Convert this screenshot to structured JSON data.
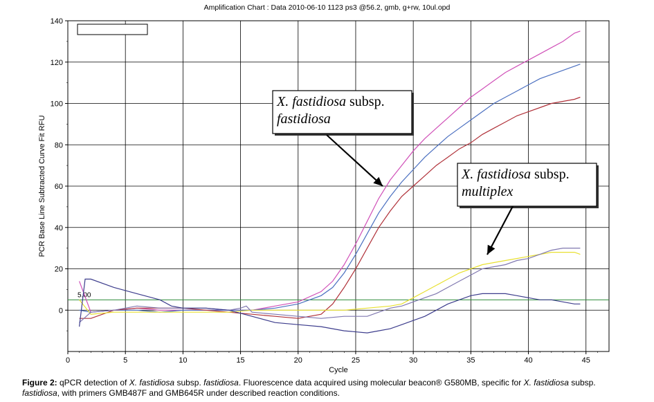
{
  "chart_data": {
    "type": "line",
    "title": "Amplification Chart : Data 2010-06-10 1123 ps3 @56.2, gmb, g+rw, 10ul.opd",
    "xlabel": "Cycle",
    "ylabel": "PCR Base Line Subtracted Curve Fit RFU",
    "xlim": [
      0,
      47
    ],
    "ylim": [
      -20,
      140
    ],
    "x_ticks": [
      "0",
      "5",
      "10",
      "15",
      "20",
      "25",
      "30",
      "35",
      "40",
      "45"
    ],
    "y_ticks": [
      "0",
      "20",
      "40",
      "60",
      "80",
      "100",
      "120",
      "140"
    ],
    "threshold": {
      "label": "5.00",
      "value": 5,
      "color": "#2e8b3a"
    },
    "grid": true,
    "series": [
      {
        "color": "#d050b8",
        "points": [
          [
            1,
            14
          ],
          [
            2,
            -1
          ],
          [
            4,
            0
          ],
          [
            6,
            1
          ],
          [
            8,
            0
          ],
          [
            10,
            0
          ],
          [
            12,
            0
          ],
          [
            14,
            0
          ],
          [
            16,
            0
          ],
          [
            18,
            2
          ],
          [
            20,
            4
          ],
          [
            22,
            9
          ],
          [
            23,
            14
          ],
          [
            24,
            22
          ],
          [
            25,
            32
          ],
          [
            26,
            43
          ],
          [
            27,
            54
          ],
          [
            28,
            63
          ],
          [
            29,
            70
          ],
          [
            30,
            77
          ],
          [
            31,
            83
          ],
          [
            32,
            88
          ],
          [
            33,
            93
          ],
          [
            34,
            98
          ],
          [
            35,
            103
          ],
          [
            36,
            107
          ],
          [
            37,
            111
          ],
          [
            38,
            115
          ],
          [
            39,
            118
          ],
          [
            40,
            121
          ],
          [
            41,
            124
          ],
          [
            42,
            127
          ],
          [
            43,
            130
          ],
          [
            44,
            134
          ],
          [
            44.5,
            135
          ]
        ]
      },
      {
        "color": "#4a6fc0",
        "points": [
          [
            1,
            0
          ],
          [
            2,
            -1
          ],
          [
            4,
            0
          ],
          [
            6,
            0
          ],
          [
            8,
            -1
          ],
          [
            10,
            0
          ],
          [
            12,
            0
          ],
          [
            14,
            0
          ],
          [
            16,
            0
          ],
          [
            18,
            1
          ],
          [
            20,
            3
          ],
          [
            22,
            7
          ],
          [
            23,
            11
          ],
          [
            24,
            18
          ],
          [
            25,
            27
          ],
          [
            26,
            37
          ],
          [
            27,
            47
          ],
          [
            28,
            55
          ],
          [
            29,
            62
          ],
          [
            30,
            68
          ],
          [
            31,
            74
          ],
          [
            32,
            79
          ],
          [
            33,
            84
          ],
          [
            34,
            88
          ],
          [
            35,
            92
          ],
          [
            36,
            96
          ],
          [
            37,
            100
          ],
          [
            38,
            103
          ],
          [
            39,
            106
          ],
          [
            40,
            109
          ],
          [
            41,
            112
          ],
          [
            42,
            114
          ],
          [
            43,
            116
          ],
          [
            44,
            118
          ],
          [
            44.5,
            119
          ]
        ]
      },
      {
        "color": "#b03038",
        "points": [
          [
            1,
            -4
          ],
          [
            2,
            -4
          ],
          [
            4,
            0
          ],
          [
            6,
            1
          ],
          [
            8,
            1
          ],
          [
            10,
            1
          ],
          [
            12,
            0
          ],
          [
            14,
            -1
          ],
          [
            16,
            -2
          ],
          [
            18,
            -3
          ],
          [
            20,
            -4
          ],
          [
            22,
            -2
          ],
          [
            23,
            3
          ],
          [
            24,
            11
          ],
          [
            25,
            20
          ],
          [
            26,
            30
          ],
          [
            27,
            40
          ],
          [
            28,
            48
          ],
          [
            29,
            55
          ],
          [
            30,
            60
          ],
          [
            31,
            65
          ],
          [
            32,
            70
          ],
          [
            33,
            74
          ],
          [
            34,
            78
          ],
          [
            35,
            81
          ],
          [
            36,
            85
          ],
          [
            37,
            88
          ],
          [
            38,
            91
          ],
          [
            39,
            94
          ],
          [
            40,
            96
          ],
          [
            41,
            98
          ],
          [
            42,
            100
          ],
          [
            43,
            101
          ],
          [
            44,
            102
          ],
          [
            44.5,
            103
          ]
        ]
      },
      {
        "color": "#e8e030",
        "points": [
          [
            1,
            5
          ],
          [
            2,
            -2
          ],
          [
            4,
            -1
          ],
          [
            6,
            -1
          ],
          [
            8,
            -1
          ],
          [
            10,
            -1
          ],
          [
            12,
            -1
          ],
          [
            14,
            -1
          ],
          [
            16,
            0
          ],
          [
            18,
            0
          ],
          [
            20,
            0
          ],
          [
            22,
            0
          ],
          [
            24,
            0
          ],
          [
            26,
            1
          ],
          [
            28,
            2
          ],
          [
            29,
            3
          ],
          [
            30,
            6
          ],
          [
            31,
            9
          ],
          [
            32,
            12
          ],
          [
            33,
            15
          ],
          [
            34,
            18
          ],
          [
            35,
            20
          ],
          [
            36,
            22
          ],
          [
            37,
            23
          ],
          [
            38,
            24
          ],
          [
            39,
            25
          ],
          [
            40,
            26
          ],
          [
            41,
            27
          ],
          [
            42,
            28
          ],
          [
            43,
            28
          ],
          [
            44,
            28
          ],
          [
            44.5,
            27
          ]
        ]
      },
      {
        "color": "#8078b0",
        "points": [
          [
            1,
            -6
          ],
          [
            2,
            -1
          ],
          [
            4,
            0
          ],
          [
            6,
            2
          ],
          [
            8,
            1
          ],
          [
            10,
            1
          ],
          [
            12,
            1
          ],
          [
            14,
            0
          ],
          [
            15,
            1
          ],
          [
            15.5,
            2
          ],
          [
            16,
            -1
          ],
          [
            18,
            -2
          ],
          [
            20,
            -3
          ],
          [
            22,
            -4
          ],
          [
            24,
            -3
          ],
          [
            26,
            -3
          ],
          [
            27,
            -1
          ],
          [
            28,
            1
          ],
          [
            29,
            2
          ],
          [
            30,
            4
          ],
          [
            31,
            6
          ],
          [
            32,
            8
          ],
          [
            33,
            11
          ],
          [
            34,
            14
          ],
          [
            35,
            17
          ],
          [
            36,
            20
          ],
          [
            37,
            21
          ],
          [
            38,
            22
          ],
          [
            39,
            24
          ],
          [
            40,
            25
          ],
          [
            41,
            27
          ],
          [
            42,
            29
          ],
          [
            43,
            30
          ],
          [
            44,
            30
          ],
          [
            44.5,
            30
          ]
        ]
      },
      {
        "color": "#3c3c8c",
        "points": [
          [
            1,
            -8
          ],
          [
            1.5,
            15
          ],
          [
            2,
            15
          ],
          [
            4,
            11
          ],
          [
            6,
            8
          ],
          [
            8,
            5
          ],
          [
            9,
            2
          ],
          [
            10,
            1
          ],
          [
            12,
            1
          ],
          [
            14,
            0
          ],
          [
            16,
            -3
          ],
          [
            18,
            -6
          ],
          [
            20,
            -7
          ],
          [
            22,
            -8
          ],
          [
            24,
            -10
          ],
          [
            26,
            -11
          ],
          [
            27,
            -10
          ],
          [
            28,
            -9
          ],
          [
            29,
            -7
          ],
          [
            30,
            -5
          ],
          [
            31,
            -3
          ],
          [
            32,
            0
          ],
          [
            33,
            3
          ],
          [
            34,
            5
          ],
          [
            35,
            7
          ],
          [
            36,
            8
          ],
          [
            37,
            8
          ],
          [
            38,
            8
          ],
          [
            39,
            7
          ],
          [
            40,
            6
          ],
          [
            41,
            5
          ],
          [
            42,
            5
          ],
          [
            43,
            4
          ],
          [
            44,
            3
          ],
          [
            44.5,
            3
          ]
        ]
      }
    ],
    "annotations": [
      {
        "text_italic": "X. fastidiosa",
        "text_plain": " subsp.",
        "text_line2": "fastidiosa"
      },
      {
        "text_italic": "X. fastidiosa",
        "text_plain": " subsp.",
        "text_line2": "multiplex"
      }
    ]
  },
  "caption": {
    "label": "Figure 2:",
    "part1": " qPCR detection of ",
    "italic1": "X. fastidiosa",
    "part2": " subsp. ",
    "italic2": "fastidiosa",
    "part3": ". Fluorescence data acquired using molecular beacon® G580MB, specific for ",
    "italic3": "X. fastidiosa",
    "part4": " subsp.",
    "italic4": "fastidiosa",
    "part5": ", with primers GMB487F and GMB645R under described reaction conditions."
  }
}
